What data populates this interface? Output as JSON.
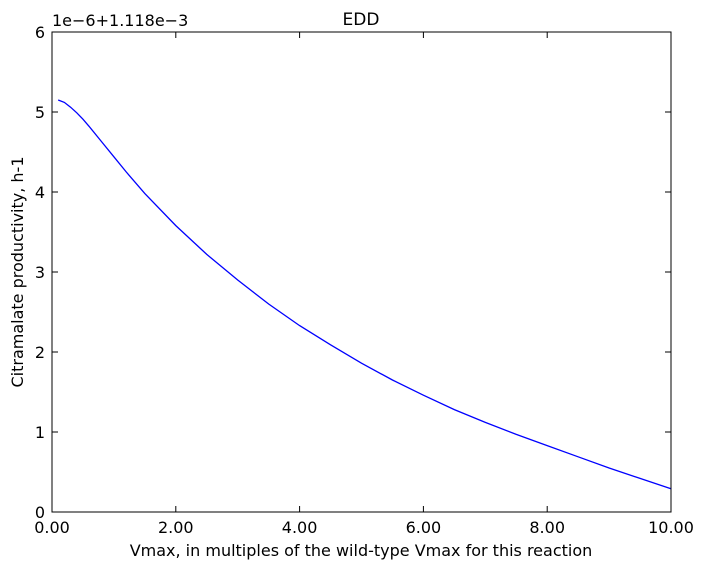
{
  "chart_data": {
    "type": "line",
    "title": "EDD",
    "xlabel": "Vmax, in multiples of the wild-type Vmax for this reaction",
    "ylabel": "Citramalate productivity, h-1",
    "y_offset_text": "1e−6+1.118e−3",
    "xlim": [
      0.0,
      10.0
    ],
    "ylim": [
      0,
      6
    ],
    "xticks": [
      "0.00",
      "2.00",
      "4.00",
      "6.00",
      "8.00",
      "10.00"
    ],
    "yticks": [
      "0",
      "1",
      "2",
      "3",
      "4",
      "5",
      "6"
    ],
    "grid": false,
    "series": [
      {
        "color": "#0000ff",
        "x": [
          0.1,
          0.2,
          0.3,
          0.4,
          0.5,
          0.6,
          0.8,
          1.0,
          1.2,
          1.5,
          2.0,
          2.5,
          3.0,
          3.5,
          4.0,
          4.5,
          5.0,
          5.5,
          6.0,
          6.5,
          7.0,
          7.5,
          8.0,
          8.5,
          9.0,
          9.5,
          10.0
        ],
        "y": [
          5.15,
          5.12,
          5.06,
          4.99,
          4.91,
          4.82,
          4.63,
          4.44,
          4.25,
          3.98,
          3.58,
          3.22,
          2.9,
          2.6,
          2.33,
          2.09,
          1.86,
          1.65,
          1.46,
          1.28,
          1.12,
          0.97,
          0.83,
          0.69,
          0.55,
          0.42,
          0.29
        ]
      }
    ]
  }
}
